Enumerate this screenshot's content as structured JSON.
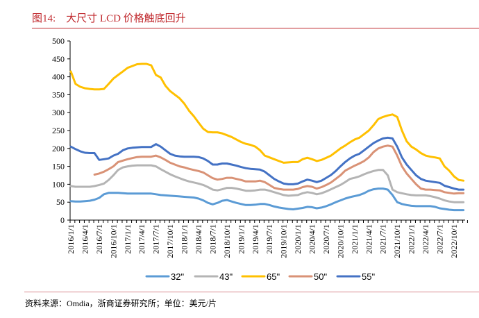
{
  "header": {
    "title": "图14:    大尺寸 LCD 价格触底回升"
  },
  "footer": {
    "source": "资料来源：Omdia，浙商证券研究所；单位：美元/片"
  },
  "chart_data": {
    "type": "line",
    "title": "大尺寸 LCD 价格触底回升",
    "ylim": [
      0,
      500
    ],
    "yticks": [
      0,
      50,
      100,
      150,
      200,
      250,
      300,
      350,
      400,
      450,
      500
    ],
    "xstart": "2016/1",
    "xfrequency": "monthly",
    "xtick_labels": [
      "2016/1/1",
      "2016/4/1",
      "2016/7/1",
      "2016/10/1",
      "2017/1/1",
      "2017/4/1",
      "2017/7/1",
      "2017/10/1",
      "2018/1/1",
      "2018/4/1",
      "2018/7/1",
      "2018/10/1",
      "2019/1/1",
      "2019/4/1",
      "2019/7/1",
      "2019/10/1",
      "2020/1/1",
      "2020/4/1",
      "2020/7/1",
      "2020/10/1",
      "2021/1/1",
      "2021/4/1",
      "2021/7/1",
      "2021/10/1",
      "2022/1/1",
      "2022/4/1",
      "2022/7/1",
      "2022/10/1"
    ],
    "legend_position": "bottom",
    "grid": false,
    "series": [
      {
        "name": "32\"",
        "color": "#5B9BD5",
        "values": [
          53,
          52,
          52,
          53,
          54,
          57,
          62,
          72,
          76,
          76,
          76,
          75,
          74,
          74,
          74,
          74,
          74,
          74,
          72,
          70,
          69,
          68,
          67,
          66,
          65,
          64,
          63,
          60,
          55,
          48,
          44,
          48,
          54,
          56,
          52,
          48,
          45,
          42,
          42,
          43,
          45,
          45,
          42,
          38,
          35,
          33,
          31,
          30,
          32,
          34,
          37,
          36,
          33,
          35,
          39,
          44,
          50,
          55,
          60,
          64,
          67,
          70,
          75,
          82,
          86,
          88,
          88,
          85,
          70,
          50,
          45,
          42,
          40,
          39,
          39,
          39,
          39,
          37,
          33,
          31,
          29,
          28,
          28,
          28
        ]
      },
      {
        "name": "43\"",
        "color": "#B4B4B4",
        "values": [
          95,
          93,
          93,
          93,
          93,
          95,
          98,
          102,
          112,
          125,
          140,
          147,
          150,
          152,
          153,
          153,
          153,
          153,
          150,
          142,
          135,
          128,
          122,
          117,
          112,
          108,
          105,
          102,
          98,
          92,
          85,
          83,
          86,
          90,
          90,
          88,
          85,
          82,
          82,
          83,
          85,
          85,
          82,
          78,
          74,
          70,
          68,
          69,
          70,
          75,
          78,
          76,
          72,
          75,
          80,
          86,
          92,
          98,
          106,
          115,
          118,
          122,
          128,
          133,
          137,
          140,
          140,
          125,
          85,
          78,
          75,
          72,
          70,
          69,
          69,
          69,
          67,
          64,
          60,
          55,
          52,
          50,
          50,
          50
        ]
      },
      {
        "name": "65\"",
        "color": "#FFC000",
        "values": [
          415,
          380,
          372,
          368,
          366,
          365,
          365,
          366,
          380,
          395,
          405,
          415,
          425,
          430,
          435,
          436,
          436,
          432,
          405,
          398,
          375,
          360,
          350,
          340,
          325,
          305,
          290,
          272,
          255,
          246,
          245,
          245,
          242,
          237,
          232,
          225,
          218,
          213,
          210,
          205,
          195,
          180,
          175,
          170,
          165,
          160,
          161,
          162,
          162,
          170,
          174,
          170,
          165,
          168,
          174,
          180,
          190,
          200,
          208,
          217,
          225,
          230,
          240,
          250,
          265,
          282,
          288,
          292,
          295,
          288,
          250,
          220,
          205,
          197,
          187,
          180,
          177,
          175,
          172,
          150,
          138,
          122,
          112,
          110
        ]
      },
      {
        "name": "50\"",
        "color": "#D99276",
        "values": [
          null,
          null,
          null,
          null,
          null,
          127,
          130,
          135,
          142,
          150,
          162,
          166,
          170,
          173,
          176,
          177,
          177,
          177,
          180,
          175,
          168,
          160,
          155,
          150,
          147,
          143,
          140,
          137,
          133,
          125,
          117,
          113,
          115,
          118,
          118,
          115,
          112,
          108,
          108,
          108,
          110,
          106,
          98,
          90,
          87,
          85,
          85,
          85,
          87,
          92,
          95,
          93,
          88,
          92,
          98,
          105,
          115,
          125,
          138,
          145,
          152,
          158,
          165,
          175,
          190,
          200,
          205,
          208,
          205,
          180,
          150,
          130,
          115,
          100,
          88,
          85,
          85,
          84,
          83,
          78,
          76,
          74,
          75,
          75
        ]
      },
      {
        "name": "55\"",
        "color": "#4472C4",
        "values": [
          205,
          198,
          192,
          188,
          187,
          187,
          168,
          170,
          172,
          180,
          185,
          195,
          200,
          202,
          203,
          204,
          204,
          204,
          212,
          205,
          195,
          185,
          180,
          178,
          177,
          177,
          177,
          176,
          172,
          165,
          155,
          155,
          158,
          158,
          155,
          152,
          148,
          145,
          143,
          142,
          141,
          135,
          125,
          115,
          108,
          102,
          100,
          100,
          102,
          108,
          113,
          110,
          106,
          110,
          118,
          126,
          137,
          150,
          162,
          172,
          180,
          185,
          195,
          205,
          215,
          222,
          228,
          230,
          228,
          205,
          175,
          155,
          140,
          125,
          115,
          110,
          108,
          106,
          104,
          96,
          92,
          88,
          85,
          85
        ]
      }
    ]
  }
}
